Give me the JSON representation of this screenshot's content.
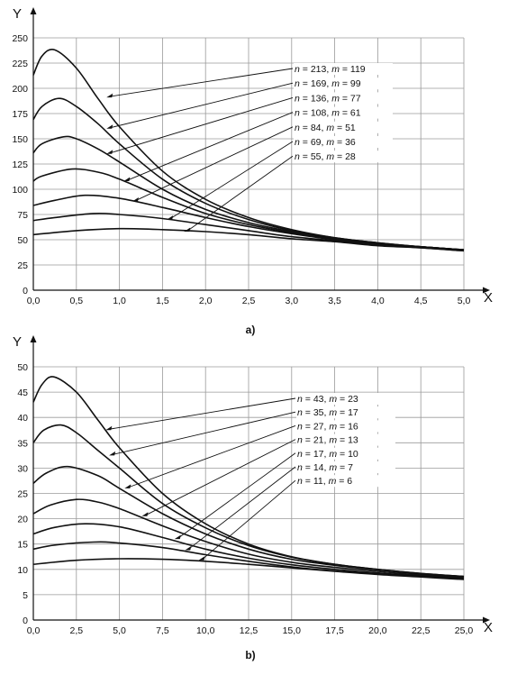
{
  "chart_data": [
    {
      "type": "line",
      "panel_label": "a)",
      "xlabel": "X",
      "ylabel": "Y",
      "xlim": [
        0,
        5
      ],
      "ylim": [
        0,
        250
      ],
      "x_ticks": [
        "0,0",
        "0,5",
        "1,0",
        "1,5",
        "2,0",
        "2,5",
        "3,0",
        "3,5",
        "4,0",
        "4,5",
        "5,0"
      ],
      "y_ticks": [
        "0",
        "25",
        "50",
        "75",
        "100",
        "125",
        "150",
        "175",
        "200",
        "225",
        "250"
      ],
      "grid": true,
      "series": [
        {
          "n": "213",
          "m": "119",
          "x": [
            0,
            0.1,
            0.25,
            0.5,
            0.75,
            1.0,
            1.5,
            2.0,
            2.5,
            3.0,
            3.5,
            4.0,
            4.5,
            5.0
          ],
          "y": [
            213,
            232,
            238,
            220,
            190,
            162,
            118,
            90,
            72,
            60,
            52,
            47,
            43,
            40
          ]
        },
        {
          "n": "169",
          "m": "99",
          "x": [
            0,
            0.1,
            0.3,
            0.5,
            0.75,
            1.0,
            1.5,
            2.0,
            2.5,
            3.0,
            3.5,
            4.0,
            4.5,
            5.0
          ],
          "y": [
            169,
            182,
            190,
            182,
            165,
            145,
            110,
            86,
            70,
            59,
            52,
            47,
            43,
            40
          ]
        },
        {
          "n": "136",
          "m": "77",
          "x": [
            0,
            0.1,
            0.35,
            0.5,
            0.75,
            1.0,
            1.5,
            2.0,
            2.5,
            3.0,
            3.5,
            4.0,
            4.5,
            5.0
          ],
          "y": [
            136,
            145,
            152,
            150,
            140,
            127,
            100,
            80,
            67,
            58,
            51,
            46,
            43,
            40
          ]
        },
        {
          "n": "108",
          "m": "61",
          "x": [
            0,
            0.1,
            0.45,
            0.75,
            1.0,
            1.5,
            2.0,
            2.5,
            3.0,
            3.5,
            4.0,
            4.5,
            5.0
          ],
          "y": [
            108,
            113,
            120,
            117,
            110,
            92,
            76,
            65,
            57,
            51,
            46,
            43,
            40
          ]
        },
        {
          "n": "84",
          "m": "51",
          "x": [
            0,
            0.25,
            0.6,
            1.0,
            1.5,
            2.0,
            2.5,
            3.0,
            3.5,
            4.0,
            4.5,
            5.0
          ],
          "y": [
            84,
            89,
            94,
            91,
            82,
            72,
            63,
            56,
            50,
            46,
            43,
            40
          ]
        },
        {
          "n": "69",
          "m": "36",
          "x": [
            0,
            0.25,
            0.7,
            1.0,
            1.5,
            2.0,
            2.5,
            3.0,
            3.5,
            4.0,
            4.5,
            5.0
          ],
          "y": [
            69,
            72,
            76,
            75,
            71,
            65,
            59,
            53,
            49,
            45,
            42,
            39
          ]
        },
        {
          "n": "55",
          "m": "28",
          "x": [
            0,
            0.5,
            1.0,
            1.5,
            2.0,
            2.5,
            3.0,
            3.5,
            4.0,
            4.5,
            5.0
          ],
          "y": [
            55,
            59,
            61,
            60,
            58,
            55,
            51,
            48,
            44,
            42,
            39
          ]
        }
      ],
      "annotations": [
        {
          "n": "213",
          "m": "119",
          "point_x": 0.85,
          "point_y": 191
        },
        {
          "n": "169",
          "m": "99",
          "point_x": 0.85,
          "point_y": 160
        },
        {
          "n": "136",
          "m": "77",
          "point_x": 0.85,
          "point_y": 135
        },
        {
          "n": "108",
          "m": "61",
          "point_x": 1.05,
          "point_y": 108
        },
        {
          "n": "84",
          "m": "51",
          "point_x": 1.15,
          "point_y": 88
        },
        {
          "n": "69",
          "m": "36",
          "point_x": 1.55,
          "point_y": 70
        },
        {
          "n": "55",
          "m": "28",
          "point_x": 1.75,
          "point_y": 58
        }
      ]
    },
    {
      "type": "line",
      "panel_label": "b)",
      "xlabel": "X",
      "ylabel": "Y",
      "xlim": [
        0,
        25
      ],
      "ylim": [
        0,
        50
      ],
      "x_ticks": [
        "0,0",
        "2,5",
        "5,0",
        "7,5",
        "10,0",
        "12,5",
        "15,0",
        "17,5",
        "20,0",
        "22,5",
        "25,0"
      ],
      "y_ticks": [
        "0",
        "5",
        "10",
        "15",
        "20",
        "25",
        "30",
        "35",
        "40",
        "45",
        "50"
      ],
      "grid": true,
      "series": [
        {
          "n": "43",
          "m": "23",
          "x": [
            0,
            0.5,
            1.2,
            2.5,
            3.75,
            5.0,
            7.5,
            10.0,
            12.5,
            15.0,
            17.5,
            20.0,
            22.5,
            25.0
          ],
          "y": [
            43,
            46.5,
            48,
            45,
            39.5,
            34,
            25,
            19,
            15,
            12.5,
            11,
            10,
            9.2,
            8.6
          ]
        },
        {
          "n": "35",
          "m": "17",
          "x": [
            0,
            0.6,
            1.6,
            2.5,
            3.75,
            5.0,
            7.5,
            10.0,
            12.5,
            15.0,
            17.5,
            20.0,
            22.5,
            25.0
          ],
          "y": [
            35,
            37.5,
            38.5,
            37,
            33.5,
            30,
            23,
            18.2,
            14.7,
            12.4,
            11,
            10,
            9.2,
            8.6
          ]
        },
        {
          "n": "27",
          "m": "16",
          "x": [
            0,
            0.75,
            2.0,
            3.75,
            5.0,
            7.5,
            10.0,
            12.5,
            15.0,
            17.5,
            20.0,
            22.5,
            25.0
          ],
          "y": [
            27,
            29,
            30.3,
            28.5,
            26,
            21,
            17,
            14,
            12,
            10.8,
            9.9,
            9.1,
            8.6
          ]
        },
        {
          "n": "21",
          "m": "13",
          "x": [
            0,
            1.0,
            2.5,
            3.75,
            5.0,
            7.5,
            10.0,
            12.5,
            15.0,
            17.5,
            20.0,
            22.5,
            25.0
          ],
          "y": [
            21,
            22.7,
            23.8,
            23.3,
            22,
            18.6,
            15.5,
            13,
            11.4,
            10.4,
            9.6,
            8.9,
            8.5
          ]
        },
        {
          "n": "17",
          "m": "10",
          "x": [
            0,
            1.25,
            3.0,
            5.0,
            7.5,
            10.0,
            12.5,
            15.0,
            17.5,
            20.0,
            22.5,
            25.0
          ],
          "y": [
            17,
            18.3,
            19,
            18.4,
            16.3,
            14,
            12.2,
            10.9,
            10,
            9.3,
            8.7,
            8.3
          ]
        },
        {
          "n": "14",
          "m": "7",
          "x": [
            0,
            1.25,
            3.5,
            5.0,
            7.5,
            10.0,
            12.5,
            15.0,
            17.5,
            20.0,
            22.5,
            25.0
          ],
          "y": [
            14,
            14.8,
            15.4,
            15.2,
            14.3,
            12.9,
            11.6,
            10.5,
            9.7,
            9.1,
            8.6,
            8.2
          ]
        },
        {
          "n": "11",
          "m": "6",
          "x": [
            0,
            2.5,
            5.0,
            7.5,
            10.0,
            12.5,
            15.0,
            17.5,
            20.0,
            22.5,
            25.0
          ],
          "y": [
            11,
            11.8,
            12.1,
            12,
            11.6,
            11,
            10.3,
            9.6,
            9,
            8.5,
            8
          ]
        }
      ],
      "annotations": [
        {
          "n": "43",
          "m": "23",
          "point_x": 4.2,
          "point_y": 37.5
        },
        {
          "n": "35",
          "m": "17",
          "point_x": 4.4,
          "point_y": 32.5
        },
        {
          "n": "27",
          "m": "16",
          "point_x": 5.3,
          "point_y": 26
        },
        {
          "n": "21",
          "m": "13",
          "point_x": 6.3,
          "point_y": 20.5
        },
        {
          "n": "17",
          "m": "10",
          "point_x": 8.2,
          "point_y": 16
        },
        {
          "n": "14",
          "m": "7",
          "point_x": 8.8,
          "point_y": 13.8
        },
        {
          "n": "11",
          "m": "6",
          "point_x": 9.6,
          "point_y": 11.8
        }
      ]
    }
  ]
}
